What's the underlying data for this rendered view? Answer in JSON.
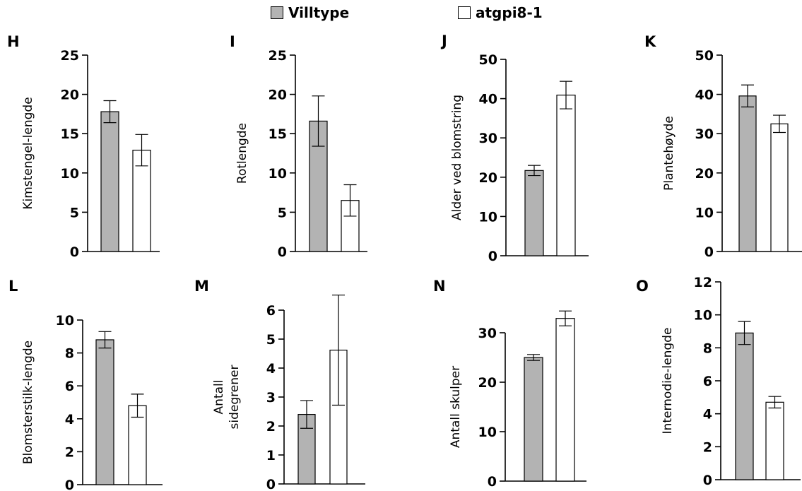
{
  "legend": {
    "items": [
      {
        "label": "Villtype",
        "color": "#b3b3b3"
      },
      {
        "label": "atgpi8-1",
        "color": "#ffffff"
      }
    ]
  },
  "colors": {
    "wildtype": "#b3b3b3",
    "mutant": "#ffffff",
    "stroke": "#000000"
  },
  "chart_data": [
    {
      "type": "bar",
      "panel": "H",
      "ylabel": [
        "Kimstengel-lengde"
      ],
      "ylim": [
        0,
        25
      ],
      "yticks": [
        0,
        5,
        10,
        15,
        20,
        25
      ],
      "series": [
        {
          "name": "Villtype",
          "values": [
            17.8
          ],
          "error": [
            1.4
          ]
        },
        {
          "name": "atgpi8-1",
          "values": [
            12.9
          ],
          "error": [
            2.0
          ]
        }
      ]
    },
    {
      "type": "bar",
      "panel": "I",
      "ylabel": [
        "Rotlengde"
      ],
      "ylim": [
        0,
        25
      ],
      "yticks": [
        0,
        5,
        10,
        15,
        20,
        25
      ],
      "series": [
        {
          "name": "Villtype",
          "values": [
            16.6
          ],
          "error": [
            3.2
          ]
        },
        {
          "name": "atgpi8-1",
          "values": [
            6.5
          ],
          "error": [
            2.0
          ]
        }
      ]
    },
    {
      "type": "bar",
      "panel": "J",
      "ylabel": [
        "Alder ved blomstring"
      ],
      "ylim": [
        0,
        50
      ],
      "yticks": [
        0,
        10,
        20,
        30,
        40,
        50
      ],
      "series": [
        {
          "name": "Villtype",
          "values": [
            21.7
          ],
          "error": [
            1.3
          ]
        },
        {
          "name": "atgpi8-1",
          "values": [
            40.9
          ],
          "error": [
            3.5
          ]
        }
      ]
    },
    {
      "type": "bar",
      "panel": "K",
      "ylabel": [
        "Plantehøyde"
      ],
      "ylim": [
        0,
        50
      ],
      "yticks": [
        0,
        10,
        20,
        30,
        40,
        50
      ],
      "series": [
        {
          "name": "Villtype",
          "values": [
            39.6
          ],
          "error": [
            2.8
          ]
        },
        {
          "name": "atgpi8-1",
          "values": [
            32.5
          ],
          "error": [
            2.2
          ]
        }
      ]
    },
    {
      "type": "bar",
      "panel": "L",
      "ylabel": [
        "Blomsterstilk-lengde"
      ],
      "ylim": [
        0,
        10
      ],
      "yticks": [
        0,
        2,
        4,
        6,
        8,
        10
      ],
      "series": [
        {
          "name": "Villtype",
          "values": [
            8.8
          ],
          "error": [
            0.5
          ]
        },
        {
          "name": "atgpi8-1",
          "values": [
            4.8
          ],
          "error": [
            0.7
          ]
        }
      ]
    },
    {
      "type": "bar",
      "panel": "M",
      "ylabel": [
        "Antall",
        "sidegrener"
      ],
      "ylim": [
        0,
        6
      ],
      "yticks": [
        0,
        1,
        2,
        3,
        4,
        5,
        6
      ],
      "series": [
        {
          "name": "Villtype",
          "values": [
            2.4
          ],
          "error": [
            0.48
          ]
        },
        {
          "name": "atgpi8-1",
          "values": [
            4.62
          ],
          "error": [
            1.9
          ]
        }
      ]
    },
    {
      "type": "bar",
      "panel": "N",
      "ylabel": [
        "Antall skulper"
      ],
      "ylim": [
        0,
        30
      ],
      "yticks": [
        0,
        10,
        20,
        30
      ],
      "series": [
        {
          "name": "Villtype",
          "values": [
            25.0
          ],
          "error": [
            0.6
          ]
        },
        {
          "name": "atgpi8-1",
          "values": [
            32.9
          ],
          "error": [
            1.5
          ]
        }
      ]
    },
    {
      "type": "bar",
      "panel": "O",
      "ylabel": [
        "Internodie-lengde"
      ],
      "ylim": [
        0,
        12
      ],
      "yticks": [
        0,
        2,
        4,
        6,
        8,
        10,
        12
      ],
      "series": [
        {
          "name": "Villtype",
          "values": [
            8.9
          ],
          "error": [
            0.7
          ]
        },
        {
          "name": "atgpi8-1",
          "values": [
            4.7
          ],
          "error": [
            0.35
          ]
        }
      ]
    }
  ]
}
